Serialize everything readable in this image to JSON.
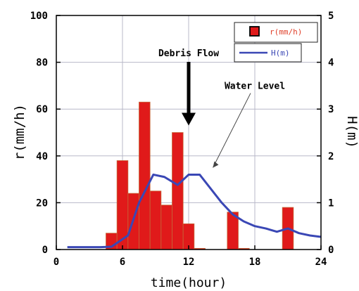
{
  "chart_data": {
    "type": "bar",
    "xlabel": "time(hour)",
    "ylabel": "r(mm/h)",
    "y2label": "H(m)",
    "xlim": [
      0,
      24
    ],
    "ylim": [
      0,
      100
    ],
    "y2lim": [
      0,
      5
    ],
    "x_ticks": [
      0,
      6,
      12,
      18,
      24
    ],
    "y_ticks": [
      0,
      20,
      40,
      60,
      80,
      100
    ],
    "y2_ticks": [
      0,
      1,
      2,
      3,
      4,
      5
    ],
    "grid": true,
    "legend_position": "top-right",
    "series": [
      {
        "name": "r(mm/h)",
        "kind": "bar",
        "axis": "left",
        "color": "#e01a1a",
        "x": [
          5,
          6,
          7,
          8,
          9,
          10,
          11,
          12,
          13,
          16,
          17,
          21
        ],
        "values": [
          7,
          38,
          24,
          63,
          25,
          19,
          50,
          11,
          0.5,
          16,
          0.5,
          18
        ]
      },
      {
        "name": "H(m)",
        "kind": "line",
        "axis": "right",
        "color": "#3a47b5",
        "x": [
          1,
          4,
          5,
          6.5,
          7.5,
          8.8,
          9.8,
          11,
          12,
          13,
          14,
          15,
          16,
          17,
          18,
          19,
          20,
          21,
          22,
          23,
          24
        ],
        "values": [
          0.05,
          0.05,
          0.06,
          0.3,
          1.0,
          1.6,
          1.55,
          1.38,
          1.6,
          1.6,
          1.3,
          1.0,
          0.75,
          0.6,
          0.5,
          0.45,
          0.38,
          0.45,
          0.35,
          0.3,
          0.27
        ]
      }
    ],
    "annotations": [
      {
        "text": "Debris Flow",
        "x": 12,
        "y": 82,
        "arrow_to": [
          12,
          53
        ]
      },
      {
        "text": "Water Level",
        "x": 18,
        "y": 71,
        "arrow_to": [
          14.2,
          35
        ]
      }
    ],
    "colors": {
      "grid": "#b8b8c8",
      "axis": "#000000",
      "legend_r_text": "#e0402a",
      "legend_h_text": "#3a47b5"
    }
  }
}
